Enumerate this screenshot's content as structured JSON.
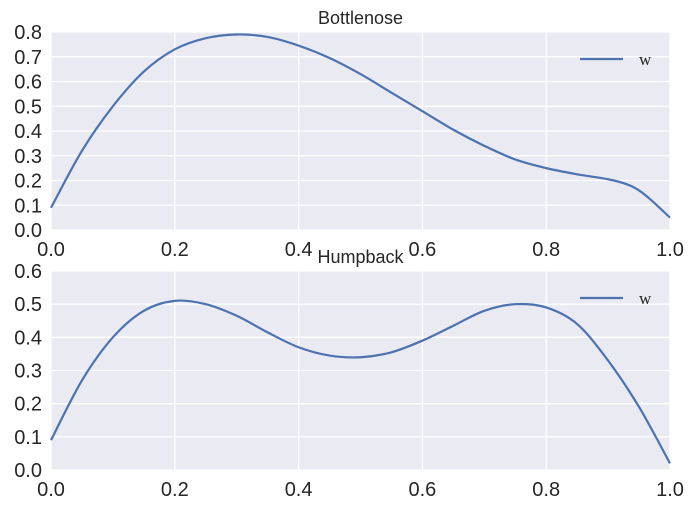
{
  "chart_data": [
    {
      "type": "line",
      "title": "Bottlenose",
      "xlabel": "",
      "ylabel": "",
      "xlim": [
        0.0,
        1.0
      ],
      "ylim": [
        0.0,
        0.8
      ],
      "xticks": [
        "0.0",
        "0.2",
        "0.4",
        "0.6",
        "0.8",
        "1.0"
      ],
      "yticks": [
        "0.0",
        "0.1",
        "0.2",
        "0.3",
        "0.4",
        "0.5",
        "0.6",
        "0.7",
        "0.8"
      ],
      "grid": true,
      "legend": "top-right",
      "series": [
        {
          "name": "w",
          "color": "#4c72b0",
          "x": [
            0.0,
            0.05,
            0.1,
            0.15,
            0.2,
            0.25,
            0.3,
            0.35,
            0.4,
            0.45,
            0.5,
            0.55,
            0.6,
            0.65,
            0.7,
            0.75,
            0.8,
            0.85,
            0.9,
            0.93,
            0.95,
            0.97,
            1.0
          ],
          "y": [
            0.09,
            0.32,
            0.5,
            0.64,
            0.73,
            0.775,
            0.79,
            0.78,
            0.745,
            0.695,
            0.63,
            0.555,
            0.48,
            0.405,
            0.34,
            0.285,
            0.25,
            0.225,
            0.205,
            0.185,
            0.16,
            0.12,
            0.05
          ]
        }
      ]
    },
    {
      "type": "line",
      "title": "Humpback",
      "xlabel": "",
      "ylabel": "",
      "xlim": [
        0.0,
        1.0
      ],
      "ylim": [
        0.0,
        0.6
      ],
      "xticks": [
        "0.0",
        "0.2",
        "0.4",
        "0.6",
        "0.8",
        "1.0"
      ],
      "yticks": [
        "0.0",
        "0.1",
        "0.2",
        "0.3",
        "0.4",
        "0.5",
        "0.6"
      ],
      "grid": true,
      "legend": "top-right",
      "series": [
        {
          "name": "w",
          "color": "#4c72b0",
          "x": [
            0.0,
            0.05,
            0.1,
            0.15,
            0.2,
            0.25,
            0.3,
            0.35,
            0.4,
            0.45,
            0.5,
            0.55,
            0.6,
            0.65,
            0.7,
            0.75,
            0.8,
            0.85,
            0.9,
            0.95,
            1.0
          ],
          "y": [
            0.09,
            0.27,
            0.4,
            0.48,
            0.51,
            0.5,
            0.465,
            0.415,
            0.37,
            0.345,
            0.34,
            0.355,
            0.39,
            0.435,
            0.48,
            0.5,
            0.49,
            0.44,
            0.33,
            0.19,
            0.02
          ]
        }
      ]
    }
  ]
}
